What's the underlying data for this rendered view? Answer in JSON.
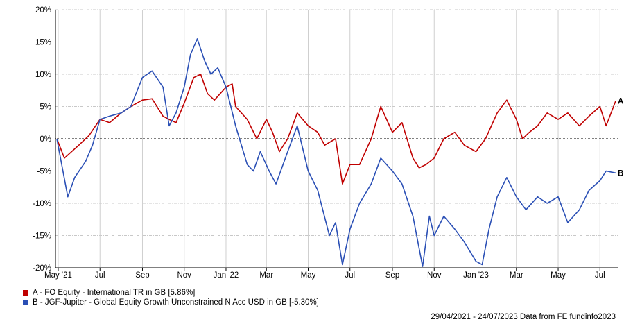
{
  "chart_data": {
    "type": "line",
    "title": "",
    "xlabel": "",
    "ylabel": "",
    "ylim": [
      -20,
      20
    ],
    "xlim": [
      "2021-04-29",
      "2023-07-24"
    ],
    "yticks": [
      20,
      15,
      10,
      5,
      0,
      -5,
      -10,
      -15,
      -20
    ],
    "ytick_labels": [
      "20%",
      "15%",
      "10%",
      "5%",
      "0%",
      "-5%",
      "-10%",
      "-15%",
      "-20%"
    ],
    "xticks": [
      "2021-05-01",
      "2021-07-01",
      "2021-09-01",
      "2021-11-01",
      "2022-01-01",
      "2022-03-01",
      "2022-05-01",
      "2022-07-01",
      "2022-09-01",
      "2022-11-01",
      "2023-01-01",
      "2023-03-01",
      "2023-05-01",
      "2023-07-01"
    ],
    "xtick_labels": [
      "May '21",
      "Jul",
      "Sep",
      "Nov",
      "Jan '22",
      "Mar",
      "May",
      "Jul",
      "Sep",
      "Nov",
      "Jan '23",
      "Mar",
      "May",
      "Jul"
    ],
    "grid": true,
    "series": [
      {
        "name": "A - FO Equity - International TR in GB [5.86%]",
        "end_label": "A",
        "color": "#c00000",
        "points": [
          [
            "2021-04-29",
            0
          ],
          [
            "2021-05-10",
            -3
          ],
          [
            "2021-05-31",
            -1
          ],
          [
            "2021-06-15",
            0.5
          ],
          [
            "2021-07-01",
            3
          ],
          [
            "2021-07-15",
            2.5
          ],
          [
            "2021-08-01",
            4
          ],
          [
            "2021-08-15",
            5
          ],
          [
            "2021-09-01",
            6
          ],
          [
            "2021-09-15",
            6.2
          ],
          [
            "2021-10-01",
            3.5
          ],
          [
            "2021-10-10",
            3
          ],
          [
            "2021-10-20",
            2.5
          ],
          [
            "2021-11-01",
            5.5
          ],
          [
            "2021-11-15",
            9.5
          ],
          [
            "2021-11-25",
            10
          ],
          [
            "2021-12-05",
            7
          ],
          [
            "2021-12-15",
            6
          ],
          [
            "2022-01-01",
            8
          ],
          [
            "2022-01-10",
            8.5
          ],
          [
            "2022-01-15",
            5
          ],
          [
            "2022-02-01",
            3
          ],
          [
            "2022-02-15",
            0
          ],
          [
            "2022-03-01",
            3
          ],
          [
            "2022-03-10",
            1
          ],
          [
            "2022-03-20",
            -2
          ],
          [
            "2022-04-01",
            0
          ],
          [
            "2022-04-15",
            4
          ],
          [
            "2022-05-01",
            2
          ],
          [
            "2022-05-15",
            1
          ],
          [
            "2022-05-25",
            -1
          ],
          [
            "2022-06-10",
            0
          ],
          [
            "2022-06-20",
            -7
          ],
          [
            "2022-07-01",
            -4
          ],
          [
            "2022-07-15",
            -4
          ],
          [
            "2022-08-01",
            0
          ],
          [
            "2022-08-15",
            5
          ],
          [
            "2022-09-01",
            1
          ],
          [
            "2022-09-15",
            2.5
          ],
          [
            "2022-10-01",
            -3
          ],
          [
            "2022-10-10",
            -4.5
          ],
          [
            "2022-10-20",
            -4
          ],
          [
            "2022-11-01",
            -3
          ],
          [
            "2022-11-15",
            0
          ],
          [
            "2022-12-01",
            1
          ],
          [
            "2022-12-15",
            -1
          ],
          [
            "2023-01-01",
            -2
          ],
          [
            "2023-01-15",
            0
          ],
          [
            "2023-02-01",
            4
          ],
          [
            "2023-02-15",
            6
          ],
          [
            "2023-03-01",
            3
          ],
          [
            "2023-03-10",
            0
          ],
          [
            "2023-03-20",
            1
          ],
          [
            "2023-04-01",
            2
          ],
          [
            "2023-04-15",
            4
          ],
          [
            "2023-05-01",
            3
          ],
          [
            "2023-05-15",
            4
          ],
          [
            "2023-06-01",
            2
          ],
          [
            "2023-06-15",
            3.5
          ],
          [
            "2023-07-01",
            5
          ],
          [
            "2023-07-10",
            2
          ],
          [
            "2023-07-24",
            5.86
          ]
        ]
      },
      {
        "name": "B - JGF-Jupiter - Global Equity Growth Unconstrained N Acc USD in GB [-5.30%]",
        "end_label": "B",
        "color": "#2a4fb5",
        "points": [
          [
            "2021-04-29",
            0
          ],
          [
            "2021-05-15",
            -9
          ],
          [
            "2021-05-25",
            -6
          ],
          [
            "2021-06-10",
            -3.5
          ],
          [
            "2021-06-20",
            -1
          ],
          [
            "2021-07-01",
            3
          ],
          [
            "2021-07-15",
            3.5
          ],
          [
            "2021-08-01",
            4
          ],
          [
            "2021-08-15",
            5
          ],
          [
            "2021-09-01",
            9.5
          ],
          [
            "2021-09-15",
            10.5
          ],
          [
            "2021-10-01",
            8
          ],
          [
            "2021-10-10",
            2
          ],
          [
            "2021-10-20",
            4
          ],
          [
            "2021-11-01",
            8
          ],
          [
            "2021-11-10",
            13
          ],
          [
            "2021-11-20",
            15.5
          ],
          [
            "2021-12-01",
            12
          ],
          [
            "2021-12-10",
            10
          ],
          [
            "2021-12-20",
            11
          ],
          [
            "2022-01-01",
            8
          ],
          [
            "2022-01-15",
            2
          ],
          [
            "2022-02-01",
            -4
          ],
          [
            "2022-02-10",
            -5
          ],
          [
            "2022-02-20",
            -2
          ],
          [
            "2022-03-05",
            -5
          ],
          [
            "2022-03-15",
            -7
          ],
          [
            "2022-04-01",
            -2
          ],
          [
            "2022-04-15",
            2
          ],
          [
            "2022-05-01",
            -5
          ],
          [
            "2022-05-15",
            -8
          ],
          [
            "2022-06-01",
            -15
          ],
          [
            "2022-06-10",
            -13
          ],
          [
            "2022-06-20",
            -19.5
          ],
          [
            "2022-07-01",
            -14
          ],
          [
            "2022-07-15",
            -10
          ],
          [
            "2022-08-01",
            -7
          ],
          [
            "2022-08-15",
            -3
          ],
          [
            "2022-09-01",
            -5
          ],
          [
            "2022-09-15",
            -7
          ],
          [
            "2022-10-01",
            -12
          ],
          [
            "2022-10-15",
            -19.8
          ],
          [
            "2022-10-25",
            -12
          ],
          [
            "2022-11-01",
            -15
          ],
          [
            "2022-11-15",
            -12
          ],
          [
            "2022-12-01",
            -14
          ],
          [
            "2022-12-15",
            -16
          ],
          [
            "2023-01-01",
            -19
          ],
          [
            "2023-01-10",
            -19.5
          ],
          [
            "2023-01-20",
            -14
          ],
          [
            "2023-02-01",
            -9
          ],
          [
            "2023-02-15",
            -6
          ],
          [
            "2023-03-01",
            -9
          ],
          [
            "2023-03-15",
            -11
          ],
          [
            "2023-04-01",
            -9
          ],
          [
            "2023-04-15",
            -10
          ],
          [
            "2023-05-01",
            -9
          ],
          [
            "2023-05-15",
            -13
          ],
          [
            "2023-06-01",
            -11
          ],
          [
            "2023-06-15",
            -8
          ],
          [
            "2023-07-01",
            -6.5
          ],
          [
            "2023-07-10",
            -5
          ],
          [
            "2023-07-24",
            -5.3
          ]
        ]
      }
    ],
    "legend_position": "bottom-left"
  },
  "footer": "29/04/2021 - 24/07/2023 Data from FE fundinfo2023"
}
